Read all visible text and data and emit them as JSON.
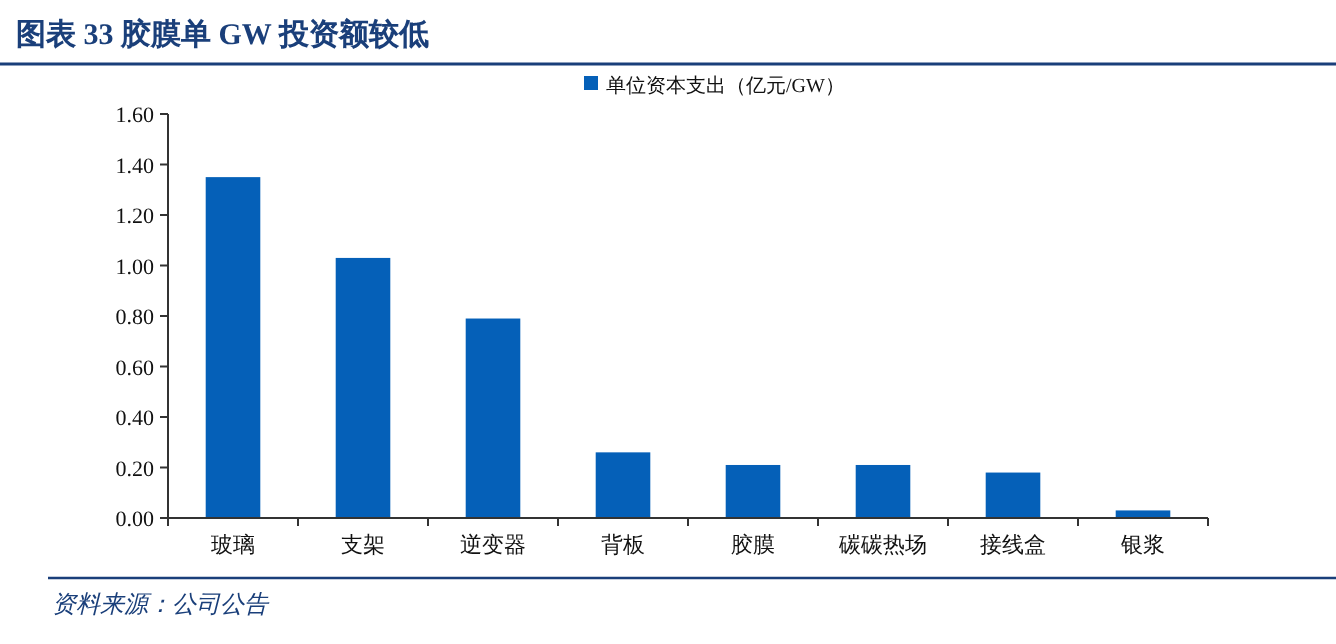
{
  "chart_data": {
    "type": "bar",
    "title": "图表 33  胶膜单 GW 投资额较低",
    "categories": [
      "玻璃",
      "支架",
      "逆变器",
      "背板",
      "胶膜",
      "碳碳热场",
      "接线盒",
      "银浆"
    ],
    "series": [
      {
        "name": "单位资本支出（亿元/GW）",
        "color": "#0560b8",
        "values": [
          1.35,
          1.03,
          0.79,
          0.26,
          0.21,
          0.21,
          0.18,
          0.03
        ]
      }
    ],
    "ylim": [
      0,
      1.6
    ],
    "yticks": [
      {
        "value": 0,
        "label": "0.00"
      },
      {
        "value": 0.2,
        "label": "0.20"
      },
      {
        "value": 0.4,
        "label": "0.40"
      },
      {
        "value": 0.6,
        "label": "0.60"
      },
      {
        "value": 0.8,
        "label": "0.80"
      },
      {
        "value": 1.0,
        "label": "1.00"
      },
      {
        "value": 1.2,
        "label": "1.20"
      },
      {
        "value": 1.4,
        "label": "1.40"
      },
      {
        "value": 1.6,
        "label": "1.60"
      }
    ],
    "grid": false,
    "legend": "top right",
    "annotations": [
      "资料来源：公司公告"
    ]
  }
}
